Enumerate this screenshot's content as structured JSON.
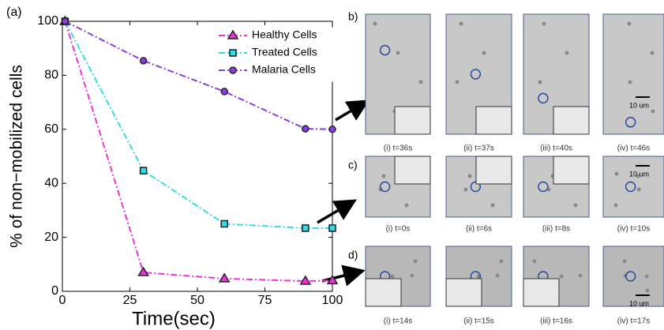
{
  "chart_data": {
    "type": "line",
    "panel_label": "(a)",
    "x_label": "Time(sec)",
    "y_label": "% of non−mobilized cells",
    "x": [
      1,
      30,
      60,
      90,
      100
    ],
    "series": [
      {
        "name": "Healthy Cells",
        "color": "#ee33dd",
        "marker": "triangle",
        "values": [
          100,
          7,
          4.7,
          3.8,
          4
        ]
      },
      {
        "name": "Treated Cells",
        "color": "#33dddd",
        "marker": "square",
        "values": [
          100,
          44.7,
          25,
          23.4,
          23.4
        ]
      },
      {
        "name": "Malaria Cells",
        "color": "#8a3ee0",
        "marker": "circle",
        "values": [
          100,
          85.4,
          74,
          60.2,
          60
        ]
      }
    ],
    "xlim": [
      0,
      100
    ],
    "ylim": [
      0,
      100
    ],
    "xticks": [
      0,
      25,
      50,
      75,
      100
    ],
    "yticks": [
      0,
      20,
      40,
      60,
      80,
      100
    ],
    "legend": "upper right"
  },
  "panels": [
    {
      "label": "b)",
      "captions": [
        "(i) t=36s",
        "(ii) t=37s",
        "(iii) t=40s",
        "(iv) t=46s"
      ],
      "scale_label": "10 um"
    },
    {
      "label": "c)",
      "captions": [
        "(i) t=0s",
        "(ii) t=6s",
        "(iii) t=8s",
        "(iv) t=10s"
      ],
      "scale_label": "10 um"
    },
    {
      "label": "d)",
      "captions": [
        "(i) t=14s",
        "(ii) t=15s",
        "(iii) t=16s",
        "(iv) t=17s"
      ],
      "scale_label": "10 um"
    }
  ]
}
